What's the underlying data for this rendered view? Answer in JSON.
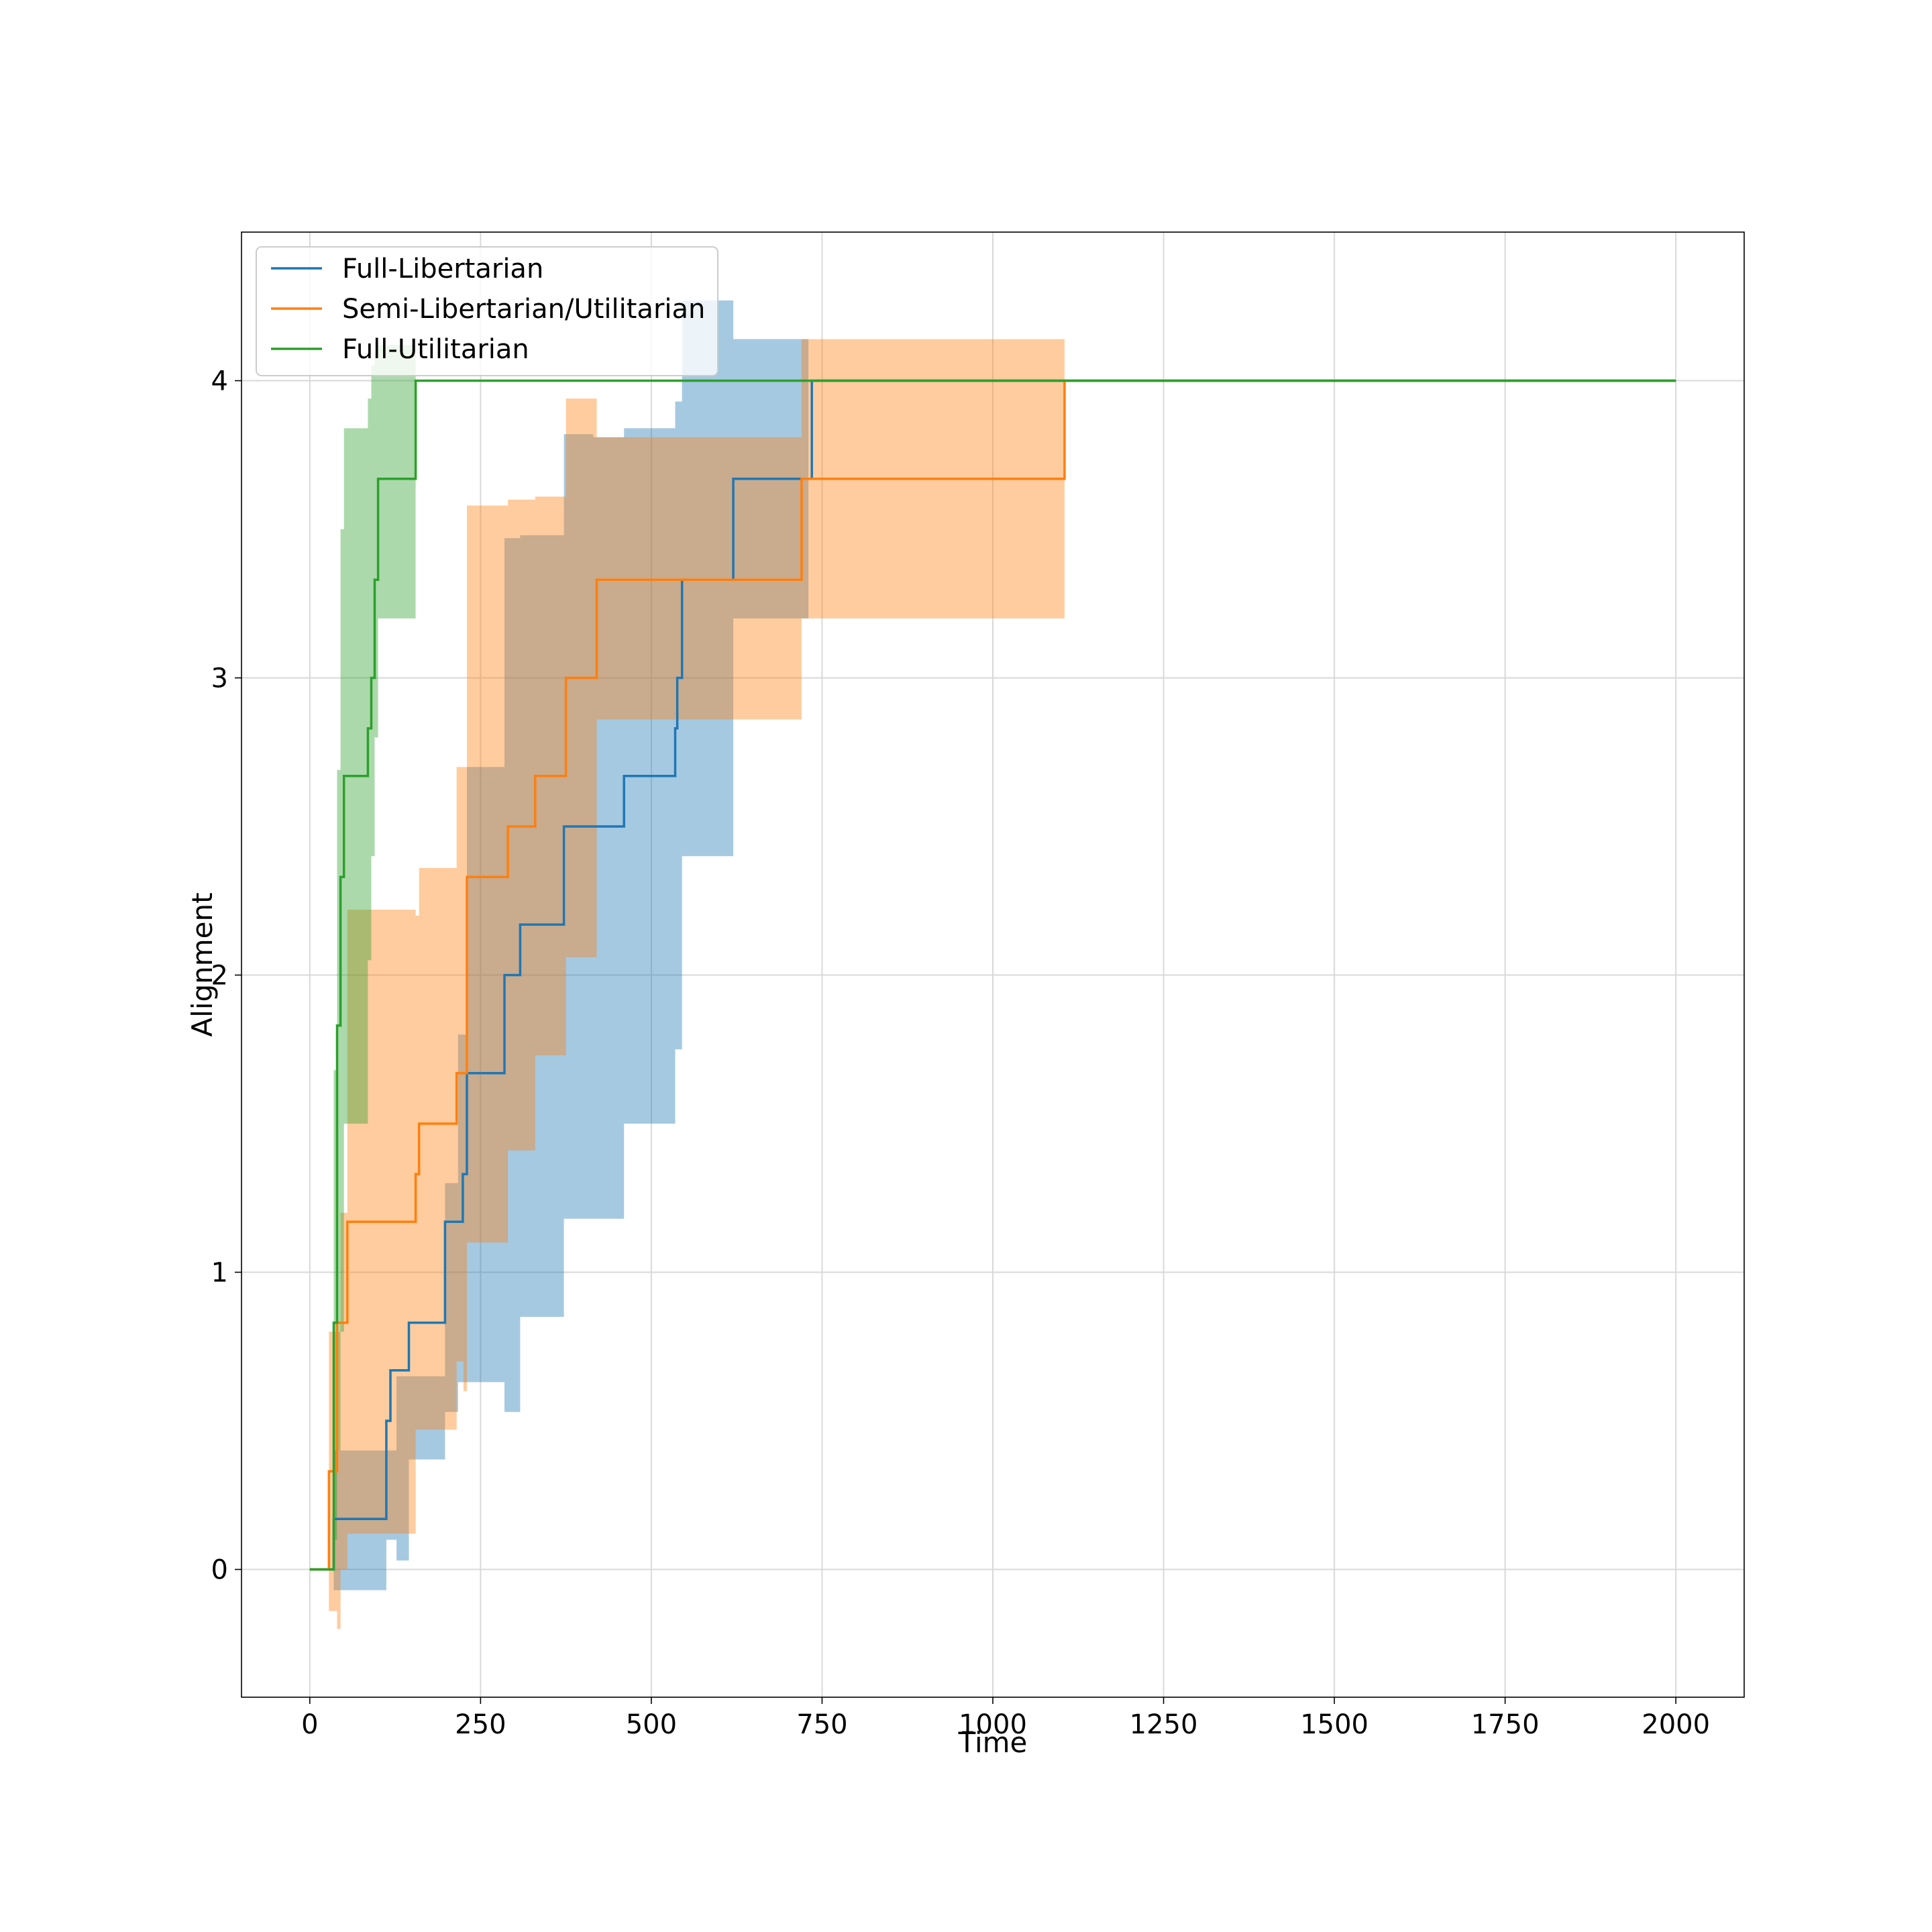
{
  "chart_data": {
    "type": "line",
    "title": "",
    "xlabel": "Time",
    "ylabel": "Alignment",
    "xlim": [
      -100,
      2100
    ],
    "ylim": [
      -0.43,
      4.5
    ],
    "xticks": [
      0,
      250,
      500,
      750,
      1000,
      1250,
      1500,
      1750,
      2000
    ],
    "yticks": [
      0,
      1,
      2,
      3,
      4
    ],
    "grid": true,
    "legend_position": "top-left",
    "series": [
      {
        "name": "Full-Libertarian",
        "color": "#1f77b4",
        "x": [
          0,
          30,
          35,
          112,
          118,
          127,
          145,
          198,
          217,
          224,
          230,
          285,
          290,
          308,
          372,
          377,
          415,
          460,
          535,
          538,
          542,
          545,
          620,
          730,
          735,
          2000
        ],
        "y": [
          0,
          0,
          0.17,
          0.5,
          0.67,
          0.67,
          0.83,
          1.17,
          1.17,
          1.33,
          1.67,
          2.0,
          2.0,
          2.17,
          2.5,
          2.5,
          2.5,
          2.67,
          2.83,
          3.0,
          3.0,
          3.33,
          3.67,
          3.67,
          4.0,
          4.0
        ],
        "band_x": [
          35,
          112,
          127,
          145,
          198,
          217,
          230,
          285,
          308,
          372,
          415,
          460,
          535,
          545,
          620,
          730
        ],
        "band_lower": [
          -0.07,
          0.1,
          0.03,
          0.37,
          0.53,
          0.63,
          0.63,
          0.53,
          0.85,
          1.18,
          1.18,
          1.5,
          1.75,
          2.4,
          3.2,
          4.0
        ],
        "band_upper": [
          0.4,
          0.4,
          0.65,
          0.65,
          1.3,
          1.8,
          2.7,
          3.47,
          3.48,
          3.82,
          3.81,
          3.84,
          3.93,
          4.27,
          4.14,
          4.0
        ]
      },
      {
        "name": "Semi-Libertarian/Utilitarian",
        "color": "#ff7f0e",
        "x": [
          0,
          28,
          40,
          45,
          55,
          155,
          160,
          215,
          225,
          230,
          290,
          330,
          375,
          420,
          720,
          725,
          1105,
          1110,
          2000
        ],
        "y": [
          0,
          0.33,
          0.83,
          0.83,
          1.17,
          1.33,
          1.5,
          1.67,
          1.67,
          2.33,
          2.5,
          2.67,
          3.0,
          3.33,
          3.67,
          3.67,
          4.0,
          4.0,
          4.0
        ],
        "band_x": [
          28,
          40,
          45,
          55,
          155,
          160,
          215,
          225,
          230,
          290,
          330,
          375,
          420,
          720,
          1105
        ],
        "band_lower": [
          -0.14,
          -0.2,
          0.0,
          0.12,
          0.47,
          0.47,
          0.7,
          0.6,
          1.1,
          1.41,
          1.73,
          2.06,
          2.86,
          3.2,
          4.0
        ],
        "band_upper": [
          0.8,
          0.8,
          1.2,
          2.22,
          2.2,
          2.36,
          2.7,
          2.7,
          3.58,
          3.6,
          3.61,
          3.94,
          3.81,
          4.14,
          4.0
        ]
      },
      {
        "name": "Full-Utilitarian",
        "color": "#2ca02c",
        "x": [
          0,
          35,
          40,
          45,
          50,
          55,
          85,
          90,
          95,
          100,
          105,
          155,
          160,
          2000
        ],
        "y": [
          0,
          0.83,
          1.83,
          2.33,
          2.67,
          2.67,
          2.83,
          3.0,
          3.33,
          3.67,
          3.67,
          4.0,
          4.0,
          4.0
        ],
        "band_x": [
          35,
          40,
          45,
          50,
          55,
          85,
          90,
          95,
          100,
          155
        ],
        "band_lower": [
          0.1,
          0.4,
          0.8,
          1.5,
          1.5,
          2.05,
          2.4,
          2.8,
          3.2,
          4.0
        ],
        "band_upper": [
          1.68,
          2.69,
          3.5,
          3.84,
          3.84,
          3.94,
          4.05,
          4.12,
          4.12,
          4.0
        ]
      }
    ]
  }
}
